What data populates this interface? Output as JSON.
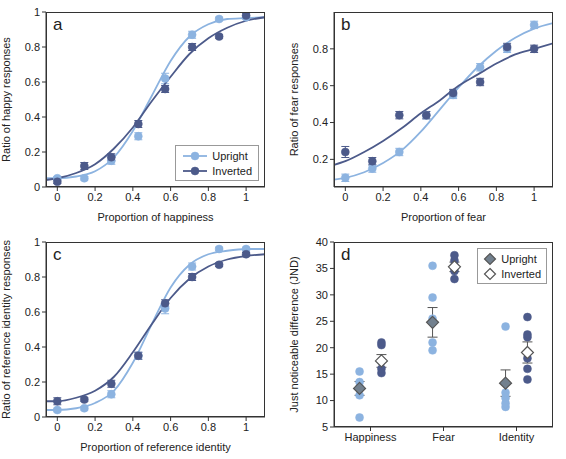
{
  "chart_data": [
    {
      "type": "line",
      "title": "a",
      "x_label": "Proportion of happiness",
      "y_label": "Ratio of happy responses",
      "xlim": [
        -0.06,
        1.1
      ],
      "xticks": [
        0,
        0.2,
        0.4,
        0.6,
        0.8,
        1
      ],
      "ylim": [
        0,
        1
      ],
      "yticks": [
        0,
        0.2,
        0.4,
        0.6,
        0.8,
        1
      ],
      "legend": "lower right",
      "x": [
        0,
        0.143,
        0.286,
        0.429,
        0.571,
        0.714,
        0.857,
        1
      ],
      "fit_x": [
        -0.06,
        0,
        0.1,
        0.2,
        0.3,
        0.4,
        0.5,
        0.6,
        0.7,
        0.8,
        0.9,
        1,
        1.1
      ],
      "series": [
        {
          "name": "Upright",
          "color": "#8cb3e0",
          "marker": "circle",
          "values": [
            0.05,
            0.05,
            0.15,
            0.29,
            0.62,
            0.87,
            0.96,
            0.97
          ],
          "errors": [
            0.01,
            0.01,
            0.02,
            0.02,
            0.03,
            0.02,
            0.01,
            0.01
          ],
          "fit": [
            0.05,
            0.05,
            0.06,
            0.09,
            0.17,
            0.32,
            0.52,
            0.72,
            0.86,
            0.93,
            0.96,
            0.965,
            0.97
          ]
        },
        {
          "name": "Inverted",
          "color": "#4c5a8a",
          "marker": "circle",
          "values": [
            0.03,
            0.12,
            0.17,
            0.36,
            0.56,
            0.8,
            0.86,
            0.98
          ],
          "errors": [
            0.01,
            0.02,
            0.02,
            0.02,
            0.02,
            0.02,
            0.01,
            0.01
          ],
          "fit": [
            0.04,
            0.05,
            0.08,
            0.13,
            0.22,
            0.34,
            0.49,
            0.63,
            0.76,
            0.85,
            0.91,
            0.95,
            0.97
          ]
        }
      ]
    },
    {
      "type": "line",
      "title": "b",
      "x_label": "Proportion of fear",
      "y_label": "Ratio of fear responses",
      "xlim": [
        -0.06,
        1.1
      ],
      "xticks": [
        0,
        0.2,
        0.4,
        0.6,
        0.8,
        1
      ],
      "ylim": [
        0.05,
        1
      ],
      "yticks": [
        0.2,
        0.4,
        0.6,
        0.8
      ],
      "x": [
        0,
        0.143,
        0.286,
        0.429,
        0.571,
        0.714,
        0.857,
        1
      ],
      "fit_x": [
        -0.06,
        0,
        0.1,
        0.2,
        0.3,
        0.4,
        0.5,
        0.6,
        0.7,
        0.8,
        0.9,
        1,
        1.1
      ],
      "series": [
        {
          "name": "Upright",
          "color": "#8cb3e0",
          "marker": "circle",
          "values": [
            0.1,
            0.15,
            0.24,
            0.44,
            0.55,
            0.7,
            0.8,
            0.93
          ],
          "errors": [
            0.02,
            0.02,
            0.02,
            0.02,
            0.02,
            0.02,
            0.02,
            0.02
          ],
          "fit": [
            0.09,
            0.1,
            0.13,
            0.18,
            0.25,
            0.35,
            0.47,
            0.59,
            0.7,
            0.79,
            0.86,
            0.91,
            0.94
          ]
        },
        {
          "name": "Inverted",
          "color": "#4c5a8a",
          "marker": "circle",
          "values": [
            0.24,
            0.19,
            0.44,
            0.44,
            0.56,
            0.62,
            0.81,
            0.8
          ],
          "errors": [
            0.03,
            0.02,
            0.02,
            0.02,
            0.02,
            0.02,
            0.02,
            0.02
          ],
          "fit": [
            0.17,
            0.19,
            0.24,
            0.3,
            0.37,
            0.45,
            0.52,
            0.6,
            0.66,
            0.72,
            0.77,
            0.8,
            0.83
          ]
        }
      ]
    },
    {
      "type": "line",
      "title": "c",
      "x_label": "Proportion of reference identity",
      "y_label": "Ratio of reference identity responses",
      "xlim": [
        -0.06,
        1.1
      ],
      "xticks": [
        0,
        0.2,
        0.4,
        0.6,
        0.8,
        1
      ],
      "ylim": [
        0,
        1
      ],
      "yticks": [
        0,
        0.2,
        0.4,
        0.6,
        0.8,
        1
      ],
      "x": [
        0,
        0.143,
        0.286,
        0.429,
        0.571,
        0.714,
        0.857,
        1
      ],
      "fit_x": [
        -0.06,
        0,
        0.1,
        0.2,
        0.3,
        0.4,
        0.5,
        0.6,
        0.7,
        0.8,
        0.9,
        1,
        1.1
      ],
      "series": [
        {
          "name": "Upright",
          "color": "#8cb3e0",
          "marker": "circle",
          "values": [
            0.04,
            0.05,
            0.13,
            0.35,
            0.62,
            0.86,
            0.96,
            0.96
          ],
          "errors": [
            0.01,
            0.01,
            0.02,
            0.02,
            0.03,
            0.02,
            0.01,
            0.01
          ],
          "fit": [
            0.04,
            0.04,
            0.05,
            0.08,
            0.15,
            0.31,
            0.53,
            0.74,
            0.87,
            0.93,
            0.95,
            0.96,
            0.96
          ]
        },
        {
          "name": "Inverted",
          "color": "#4c5a8a",
          "marker": "circle",
          "values": [
            0.09,
            0.1,
            0.19,
            0.35,
            0.65,
            0.8,
            0.87,
            0.93
          ],
          "errors": [
            0.02,
            0.01,
            0.02,
            0.02,
            0.02,
            0.02,
            0.01,
            0.01
          ],
          "fit": [
            0.09,
            0.09,
            0.11,
            0.15,
            0.23,
            0.37,
            0.53,
            0.68,
            0.79,
            0.86,
            0.9,
            0.92,
            0.93
          ]
        }
      ]
    },
    {
      "type": "scatter",
      "title": "d",
      "y_label": "Just noticeable difference (JND)",
      "categories": [
        "Happiness",
        "Fear",
        "Identity"
      ],
      "ylim": [
        5,
        40
      ],
      "yticks": [
        5,
        10,
        15,
        20,
        25,
        30,
        35,
        40
      ],
      "legend": "upper right",
      "series": [
        {
          "name": "Upright",
          "color": "#8cb3e0",
          "marker": "circle",
          "values": [
            [
              6.8,
              11,
              12.5,
              13.5,
              15.5
            ],
            [
              19.5,
              21,
              25.5,
              29.5,
              35.5
            ],
            [
              8.8,
              9.5,
              10.5,
              11.5,
              24
            ]
          ],
          "means": [
            12.3,
            24.8,
            13.3
          ],
          "errors": [
            1.3,
            2.8,
            2.5
          ]
        },
        {
          "name": "Inverted",
          "color": "#4c5a8a",
          "marker": "circle",
          "values": [
            [
              15.2,
              16,
              17.5,
              20.5,
              21
            ],
            [
              33,
              34.5,
              35.5,
              36.5,
              37.5
            ],
            [
              14,
              16,
              18,
              22,
              22.5,
              25.8
            ]
          ],
          "means": [
            17.5,
            35.3,
            19.1
          ],
          "errors": [
            1.2,
            0.9,
            2.0
          ]
        }
      ]
    }
  ]
}
